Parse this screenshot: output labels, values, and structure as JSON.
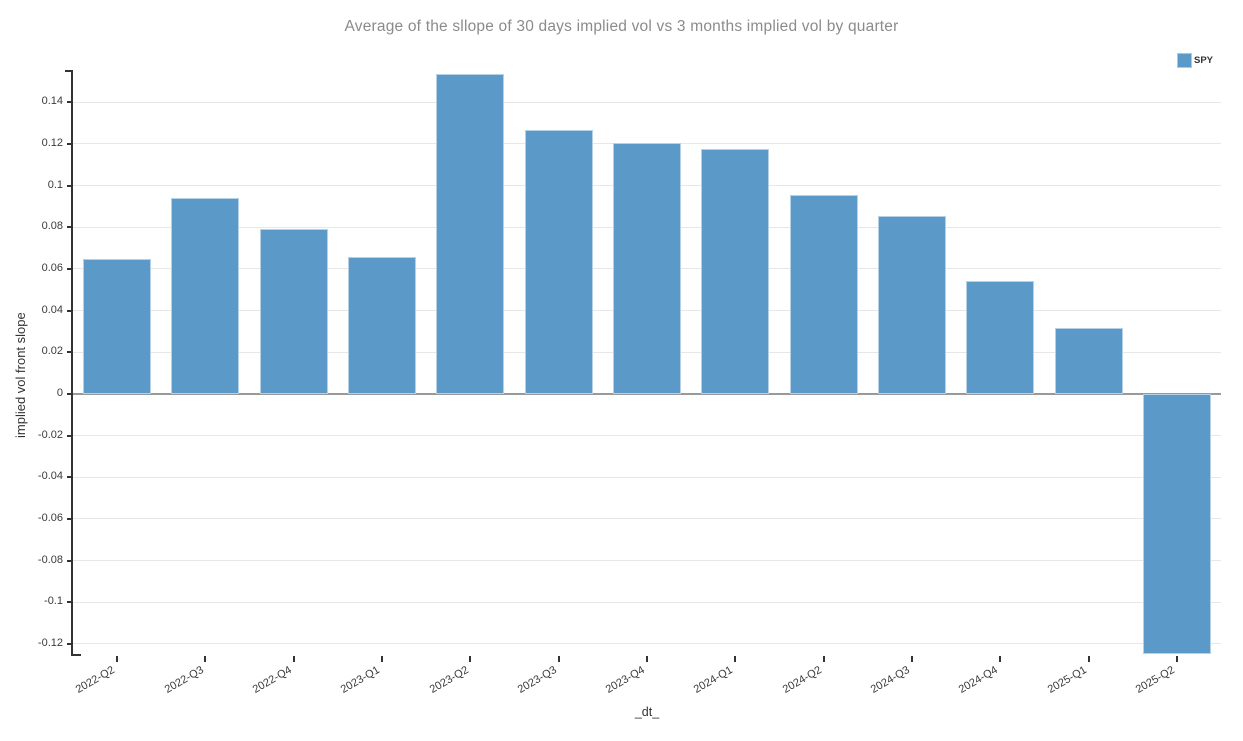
{
  "chart_data": {
    "type": "bar",
    "title": "Average of the sllope of 30 days implied vol vs 3 months implied vol by quarter",
    "xlabel": "_dt_",
    "ylabel": "implied vol front slope",
    "categories": [
      "2022-Q2",
      "2022-Q3",
      "2022-Q4",
      "2023-Q1",
      "2023-Q2",
      "2023-Q3",
      "2023-Q4",
      "2024-Q1",
      "2024-Q2",
      "2024-Q3",
      "2024-Q4",
      "2025-Q1",
      "2025-Q2"
    ],
    "series": [
      {
        "name": "SPY",
        "color": "#5A99C8",
        "values": [
          0.0647,
          0.094,
          0.079,
          0.0655,
          0.1535,
          0.1267,
          0.1205,
          0.1174,
          0.0956,
          0.0855,
          0.0542,
          0.0318,
          -0.1248
        ]
      }
    ],
    "ylim": [
      -0.1253,
      0.155
    ],
    "yticks": [
      {
        "value": -0.12,
        "label": "-0.12"
      },
      {
        "value": -0.1,
        "label": "-0.1"
      },
      {
        "value": -0.08,
        "label": "-0.08"
      },
      {
        "value": -0.06,
        "label": "-0.06"
      },
      {
        "value": -0.04,
        "label": "-0.04"
      },
      {
        "value": -0.02,
        "label": "-0.02"
      },
      {
        "value": 0,
        "label": "0"
      },
      {
        "value": 0.02,
        "label": "0.02"
      },
      {
        "value": 0.04,
        "label": "0.04"
      },
      {
        "value": 0.06,
        "label": "0.06"
      },
      {
        "value": 0.08,
        "label": "0.08"
      },
      {
        "value": 0.1,
        "label": "0.1"
      },
      {
        "value": 0.12,
        "label": "0.12"
      },
      {
        "value": 0.14,
        "label": "0.14"
      }
    ],
    "grid": "horizontal",
    "legend_position": "top-right",
    "colors": {
      "bar": "#5A99C8",
      "gridline": "#e7e7e7",
      "zero_line": "#999999",
      "axis": "#333333",
      "tick_label": "#3b3b3b",
      "title": "#8b8b8b"
    }
  }
}
